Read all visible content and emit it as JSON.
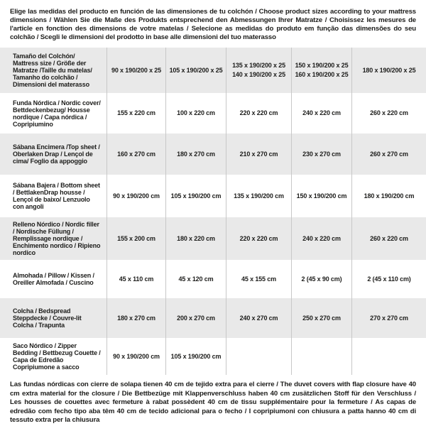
{
  "page": {
    "intro": "Elige las medidas del producto en función de las dimensiones de tu colchón / Choose product sizes according to your mattress dimensions / Wählen Sie die Maße des Produkts entsprechend den Abmessungen Ihrer Matratze / Choisissez les mesures de l'article en fonction des dimensions de votre matelas / Selecione as medidas do produto em função das dimensões do seu colchão / Scegli le dimensioni del prodotto in base alle dimensioni del tuo materasso",
    "footnote": "Las fundas nórdicas con cierre de solapa tienen 40 cm de tejido extra para el cierre / The duvet covers with flap closure have 40 cm extra material for the closure / Die Bettbezüge mit Klappenverschluss haben 40 cm zusätzlichen Stoff für den Verschluss / Les housses de couettes avec fermeture à rabat possèdent 40 cm de tissu supplémentaire pour la fermeture / As capas de edredão com fecho tipo aba têm 40 cm de tecido adicional para o fecho / I copripiumoni con chiusura a patta hanno 40 cm di tessuto extra per la chiusura"
  },
  "colors": {
    "row_alt_background": "#e9e9e9",
    "row_base_background": "#ffffff",
    "column_divider": "#c8c8c8",
    "text": "#1d1d1b"
  },
  "table": {
    "rows": [
      {
        "label": "Tamaño del Colchón/ Mattress size / Größe der Matratze /Taille du matelas/ Tamanho do colchão / Dimensioni del materasso",
        "values": [
          "90 x 190/200 x 25",
          "105 x 190/200 x 25",
          "135 x 190/200 x 25\n140 x 190/200 x 25",
          "150 x 190/200 x 25\n160 x 190/200 x 25",
          "180 x 190/200 x 25"
        ]
      },
      {
        "label": "Funda Nórdica / Nordic cover/ Bettdeckenbezug/ Housse nordique / Capa nórdica / Copripiumino",
        "values": [
          "155 x 220 cm",
          "100 x 220 cm",
          "220 x 220 cm",
          "240 x 220 cm",
          "260 x 220 cm"
        ]
      },
      {
        "label": "Sábana Encimera /Top sheet / Oberlaken Drap / Lençol de cima/ Foglio da appoggio",
        "values": [
          "160 x 270 cm",
          "180 x 270 cm",
          "210 x 270 cm",
          "230 x 270 cm",
          "260 x 270 cm"
        ]
      },
      {
        "label": "Sábana Bajera / Bottom sheet / BettlakenDrap housse / Lençol de baixo/ Lenzuolo con angoli",
        "values": [
          "90 x 190/200 cm",
          "105 x 190/200 cm",
          "135 x 190/200 cm",
          "150 x 190/200 cm",
          "180 x 190/200 cm"
        ]
      },
      {
        "label": "Relleno Nórdico / Nordic filler / Nordische Füllung / Remplissage nordique / Enchimento nordico / Ripieno nordico",
        "values": [
          "155 x 200 cm",
          "180 x 220 cm",
          "220 x 220 cm",
          "240 x 220 cm",
          "260 x 220 cm"
        ]
      },
      {
        "label": "Almohada / Pillow / Kissen / Oreiller Almofada / Cuscino",
        "values": [
          "45 x 110 cm",
          "45 x 120 cm",
          "45 x 155 cm",
          "2 (45 x 90 cm)",
          "2 (45 x 110 cm)"
        ]
      },
      {
        "label": "Colcha / Bedspread Steppdecke / Couvre-lit Colcha / Trapunta",
        "values": [
          "180 x 270 cm",
          "200 x 270 cm",
          "240 x 270 cm",
          "250 x 270 cm",
          "270 x 270 cm"
        ]
      },
      {
        "label": "Saco Nórdico / Zipper Bedding / Bettbezug Couette / Capa de Edredão Copripiumone a sacco",
        "values": [
          "90 x 190/200 cm",
          "105 x 190/200 cm",
          "",
          "",
          ""
        ]
      }
    ]
  }
}
